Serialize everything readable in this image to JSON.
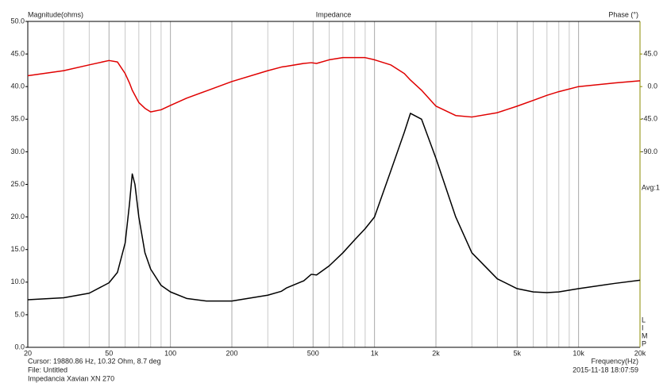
{
  "chart_data": {
    "type": "line",
    "title": "Impedance",
    "y_label": "Magnitude(ohms)",
    "y2_label": "Phase (°)",
    "x_label": "Frequency(Hz)",
    "annotations": {
      "cursor": "Cursor: 19880.86 Hz, 10.32 Ohm, 8.7 deg",
      "file": "File: Untitled",
      "name": "Impedancia Xavian XN 270",
      "timestamp": "2015-11-18 18:07:59",
      "average": "Avg:1",
      "limp_indicator": [
        "L",
        "I",
        "M",
        "P"
      ]
    },
    "x_log": true,
    "xlim": [
      20,
      20000
    ],
    "xticks": [
      20,
      50,
      100,
      200,
      500,
      {
        "value": 1000,
        "label": "1k"
      },
      {
        "value": 2000,
        "label": "2k"
      },
      {
        "value": 5000,
        "label": "5k"
      },
      {
        "value": 10000,
        "label": "10k"
      },
      {
        "value": 20000,
        "label": "20k"
      }
    ],
    "x_minor_ticks": [
      30,
      40,
      60,
      70,
      80,
      90,
      300,
      400,
      600,
      700,
      800,
      900,
      3000,
      4000,
      6000,
      7000,
      8000,
      9000
    ],
    "ylim": [
      0,
      50
    ],
    "yticks": [
      {
        "value": 0,
        "label": "0.0"
      },
      {
        "value": 5,
        "label": "5.0"
      },
      {
        "value": 10,
        "label": "10.0"
      },
      {
        "value": 15,
        "label": "15.0"
      },
      {
        "value": 20,
        "label": "20.0"
      },
      {
        "value": 25,
        "label": "25.0"
      },
      {
        "value": 30,
        "label": "30.0"
      },
      {
        "value": 35,
        "label": "35.0"
      },
      {
        "value": 40,
        "label": "40.0"
      },
      {
        "value": 45,
        "label": "45.0"
      },
      {
        "value": 50,
        "label": "50.0"
      }
    ],
    "y2lim": [
      -360,
      90
    ],
    "y2ticks": [
      {
        "value": 45,
        "label": "45.0"
      },
      {
        "value": 0,
        "label": "0.0"
      },
      {
        "value": -45,
        "label": "-45.0"
      },
      {
        "value": -90,
        "label": "-90.0"
      }
    ],
    "y2_axis_color": "#8b8b00",
    "grid": true,
    "x": [
      20,
      30,
      40,
      50,
      55,
      60,
      63,
      65,
      67,
      70,
      75,
      80,
      90,
      100,
      120,
      150,
      200,
      300,
      350,
      370,
      450,
      490,
      520,
      600,
      700,
      800,
      900,
      1000,
      1200,
      1400,
      1500,
      1700,
      2000,
      2500,
      3000,
      4000,
      5000,
      6000,
      7000,
      8000,
      10000,
      15000,
      20000
    ],
    "series": [
      {
        "name": "Magnitude",
        "color": "#000000",
        "values": [
          7.3,
          7.6,
          8.3,
          9.9,
          11.5,
          16,
          22,
          26.6,
          25,
          20,
          14.5,
          12,
          9.5,
          8.5,
          7.5,
          7.1,
          7.1,
          8,
          8.6,
          9.1,
          10.2,
          11.2,
          11.1,
          12.5,
          14.5,
          16.5,
          18.2,
          20,
          27,
          33,
          35.9,
          35,
          29,
          20,
          14.5,
          10.5,
          9,
          8.5,
          8.4,
          8.5,
          9,
          9.8,
          10.3
        ]
      },
      {
        "name": "Phase",
        "color": "#e00000",
        "axis": "y2",
        "values": [
          15,
          22,
          30,
          36,
          34,
          18,
          5,
          -5,
          -12,
          -22,
          -30,
          -35,
          -32,
          -26,
          -16,
          -6,
          7,
          22,
          27,
          28,
          32,
          33,
          32,
          37,
          40,
          40,
          40,
          37,
          30,
          18,
          9,
          -5,
          -27,
          -40,
          -42,
          -36,
          -27,
          -19,
          -12,
          -7,
          0,
          5,
          8
        ]
      }
    ]
  }
}
